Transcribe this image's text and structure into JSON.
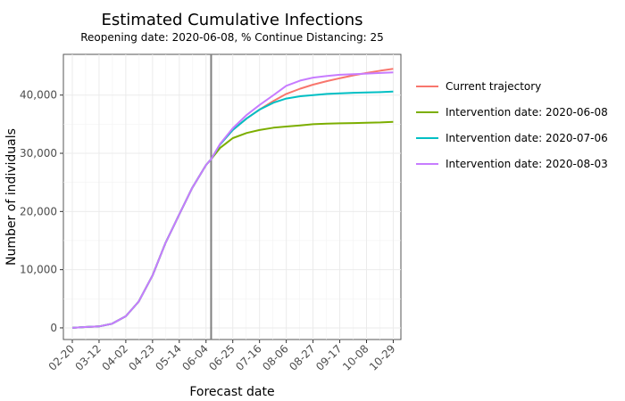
{
  "chart_data": {
    "type": "line",
    "title": "Estimated Cumulative Infections",
    "subtitle": "Reopening date: 2020-06-08, % Continue Distancing: 25",
    "xlabel": "Forecast date",
    "ylabel": "Number of individuals",
    "x_ticks": [
      "02-20",
      "03-12",
      "04-02",
      "04-23",
      "05-14",
      "06-04",
      "06-25",
      "07-16",
      "08-06",
      "08-27",
      "09-17",
      "10-08",
      "10-29"
    ],
    "y_ticks": [
      "0",
      "10,000",
      "20,000",
      "30,000",
      "40,000"
    ],
    "xlim": [
      "2020-02-13",
      "2020-11-04"
    ],
    "ylim": [
      -2000,
      47000
    ],
    "grid": true,
    "legend_position": "right",
    "reference_line": {
      "x": "2020-06-08"
    },
    "series": [
      {
        "name": "Current trajectory",
        "color": "#F8766D",
        "points": [
          [
            "2020-02-20",
            0
          ],
          [
            "2020-03-01",
            150
          ],
          [
            "2020-03-12",
            250
          ],
          [
            "2020-03-22",
            700
          ],
          [
            "2020-04-02",
            2000
          ],
          [
            "2020-04-12",
            4500
          ],
          [
            "2020-04-23",
            9000
          ],
          [
            "2020-05-03",
            14500
          ],
          [
            "2020-05-14",
            19500
          ],
          [
            "2020-05-24",
            24000
          ],
          [
            "2020-06-04",
            28000
          ],
          [
            "2020-06-08",
            29000
          ],
          [
            "2020-06-15",
            31500
          ],
          [
            "2020-06-25",
            34000
          ],
          [
            "2020-07-06",
            36000
          ],
          [
            "2020-07-16",
            37500
          ],
          [
            "2020-07-27",
            39000
          ],
          [
            "2020-08-06",
            40200
          ],
          [
            "2020-08-17",
            41100
          ],
          [
            "2020-08-27",
            41800
          ],
          [
            "2020-09-07",
            42400
          ],
          [
            "2020-09-17",
            42900
          ],
          [
            "2020-09-28",
            43400
          ],
          [
            "2020-10-08",
            43800
          ],
          [
            "2020-10-19",
            44200
          ],
          [
            "2020-10-29",
            44500
          ]
        ]
      },
      {
        "name": "Intervention date: 2020-06-08",
        "color": "#7CAE00",
        "points": [
          [
            "2020-02-20",
            0
          ],
          [
            "2020-03-01",
            150
          ],
          [
            "2020-03-12",
            250
          ],
          [
            "2020-03-22",
            700
          ],
          [
            "2020-04-02",
            2000
          ],
          [
            "2020-04-12",
            4500
          ],
          [
            "2020-04-23",
            9000
          ],
          [
            "2020-05-03",
            14500
          ],
          [
            "2020-05-14",
            19500
          ],
          [
            "2020-05-24",
            24000
          ],
          [
            "2020-06-04",
            28000
          ],
          [
            "2020-06-08",
            29000
          ],
          [
            "2020-06-15",
            30900
          ],
          [
            "2020-06-25",
            32600
          ],
          [
            "2020-07-06",
            33500
          ],
          [
            "2020-07-16",
            34000
          ],
          [
            "2020-07-27",
            34400
          ],
          [
            "2020-08-06",
            34600
          ],
          [
            "2020-08-17",
            34800
          ],
          [
            "2020-08-27",
            35000
          ],
          [
            "2020-09-07",
            35100
          ],
          [
            "2020-09-17",
            35150
          ],
          [
            "2020-09-28",
            35200
          ],
          [
            "2020-10-08",
            35250
          ],
          [
            "2020-10-19",
            35300
          ],
          [
            "2020-10-29",
            35400
          ]
        ]
      },
      {
        "name": "Intervention date: 2020-07-06",
        "color": "#00BFC4",
        "points": [
          [
            "2020-02-20",
            0
          ],
          [
            "2020-03-01",
            150
          ],
          [
            "2020-03-12",
            250
          ],
          [
            "2020-03-22",
            700
          ],
          [
            "2020-04-02",
            2000
          ],
          [
            "2020-04-12",
            4500
          ],
          [
            "2020-04-23",
            9000
          ],
          [
            "2020-05-03",
            14500
          ],
          [
            "2020-05-14",
            19500
          ],
          [
            "2020-05-24",
            24000
          ],
          [
            "2020-06-04",
            28000
          ],
          [
            "2020-06-08",
            29000
          ],
          [
            "2020-06-15",
            31500
          ],
          [
            "2020-06-25",
            34000
          ],
          [
            "2020-07-06",
            36000
          ],
          [
            "2020-07-16",
            37500
          ],
          [
            "2020-07-27",
            38700
          ],
          [
            "2020-08-06",
            39400
          ],
          [
            "2020-08-17",
            39800
          ],
          [
            "2020-08-27",
            40000
          ],
          [
            "2020-09-07",
            40200
          ],
          [
            "2020-09-17",
            40300
          ],
          [
            "2020-09-28",
            40400
          ],
          [
            "2020-10-08",
            40450
          ],
          [
            "2020-10-19",
            40500
          ],
          [
            "2020-10-29",
            40600
          ]
        ]
      },
      {
        "name": "Intervention date: 2020-08-03",
        "color": "#C77CFF",
        "points": [
          [
            "2020-02-20",
            0
          ],
          [
            "2020-03-01",
            150
          ],
          [
            "2020-03-12",
            250
          ],
          [
            "2020-03-22",
            700
          ],
          [
            "2020-04-02",
            2000
          ],
          [
            "2020-04-12",
            4500
          ],
          [
            "2020-04-23",
            9000
          ],
          [
            "2020-05-03",
            14500
          ],
          [
            "2020-05-14",
            19500
          ],
          [
            "2020-05-24",
            24000
          ],
          [
            "2020-06-04",
            28000
          ],
          [
            "2020-06-08",
            29000
          ],
          [
            "2020-06-15",
            31600
          ],
          [
            "2020-06-25",
            34300
          ],
          [
            "2020-07-06",
            36600
          ],
          [
            "2020-07-16",
            38300
          ],
          [
            "2020-07-27",
            40000
          ],
          [
            "2020-08-06",
            41600
          ],
          [
            "2020-08-17",
            42500
          ],
          [
            "2020-08-27",
            43000
          ],
          [
            "2020-09-07",
            43300
          ],
          [
            "2020-09-17",
            43500
          ],
          [
            "2020-09-28",
            43600
          ],
          [
            "2020-10-08",
            43700
          ],
          [
            "2020-10-19",
            43800
          ],
          [
            "2020-10-29",
            43900
          ]
        ]
      }
    ]
  }
}
